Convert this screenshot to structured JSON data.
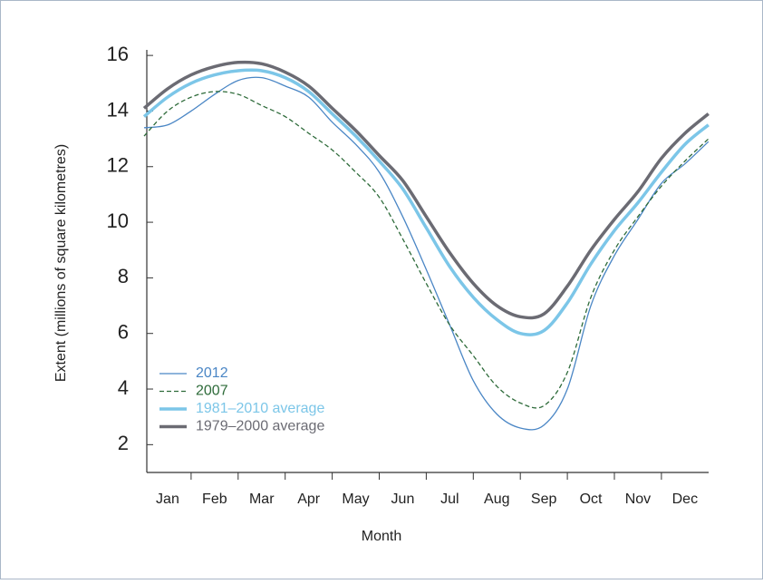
{
  "chart_data": {
    "type": "line",
    "x_label": "Month",
    "y_label": "Extent (millions of square kilometres)",
    "categories": [
      null,
      "Jan",
      null,
      "Feb",
      null,
      "Mar",
      null,
      "Apr",
      null,
      "May",
      null,
      "Jun",
      null,
      "Jul",
      null,
      "Aug",
      null,
      "Sep",
      null,
      "Oct",
      null,
      "Nov",
      null,
      "Dec",
      null
    ],
    "series": [
      {
        "name": "2012",
        "color": "#4a86c5",
        "width": 1.3,
        "dashed": false,
        "values": [
          13.4,
          13.5,
          14.0,
          14.6,
          15.1,
          15.2,
          14.9,
          14.5,
          13.6,
          12.8,
          11.8,
          10.2,
          8.3,
          6.3,
          4.3,
          3.1,
          2.6,
          2.7,
          4.0,
          7.0,
          8.8,
          10.1,
          11.4,
          12.1,
          12.9
        ]
      },
      {
        "name": "2007",
        "color": "#2e6b3a",
        "width": 1.3,
        "dashed": true,
        "values": [
          13.1,
          14.0,
          14.5,
          14.7,
          14.6,
          14.2,
          13.8,
          13.2,
          12.6,
          11.8,
          10.9,
          9.4,
          7.8,
          6.3,
          5.2,
          4.1,
          3.5,
          3.4,
          4.6,
          7.3,
          9.0,
          10.2,
          11.3,
          12.2,
          13.0
        ]
      },
      {
        "name": "1981–2010 average",
        "color": "#7cc6e8",
        "width": 3.5,
        "dashed": false,
        "values": [
          13.8,
          14.5,
          15.0,
          15.3,
          15.45,
          15.45,
          15.2,
          14.7,
          13.9,
          13.1,
          12.2,
          11.2,
          9.8,
          8.4,
          7.3,
          6.5,
          6.0,
          6.1,
          7.1,
          8.5,
          9.7,
          10.7,
          11.8,
          12.8,
          13.5
        ]
      },
      {
        "name": "1979–2000 average",
        "color": "#6b6b73",
        "width": 3.5,
        "dashed": false,
        "values": [
          14.1,
          14.8,
          15.3,
          15.6,
          15.75,
          15.7,
          15.4,
          14.9,
          14.1,
          13.3,
          12.4,
          11.5,
          10.2,
          8.9,
          7.8,
          7.0,
          6.6,
          6.7,
          7.7,
          9.0,
          10.1,
          11.1,
          12.3,
          13.2,
          13.9
        ]
      }
    ],
    "ylim": [
      1,
      16.2
    ],
    "yticks": [
      2,
      4,
      6,
      8,
      10,
      12,
      14,
      16
    ],
    "legend": "lower left"
  }
}
